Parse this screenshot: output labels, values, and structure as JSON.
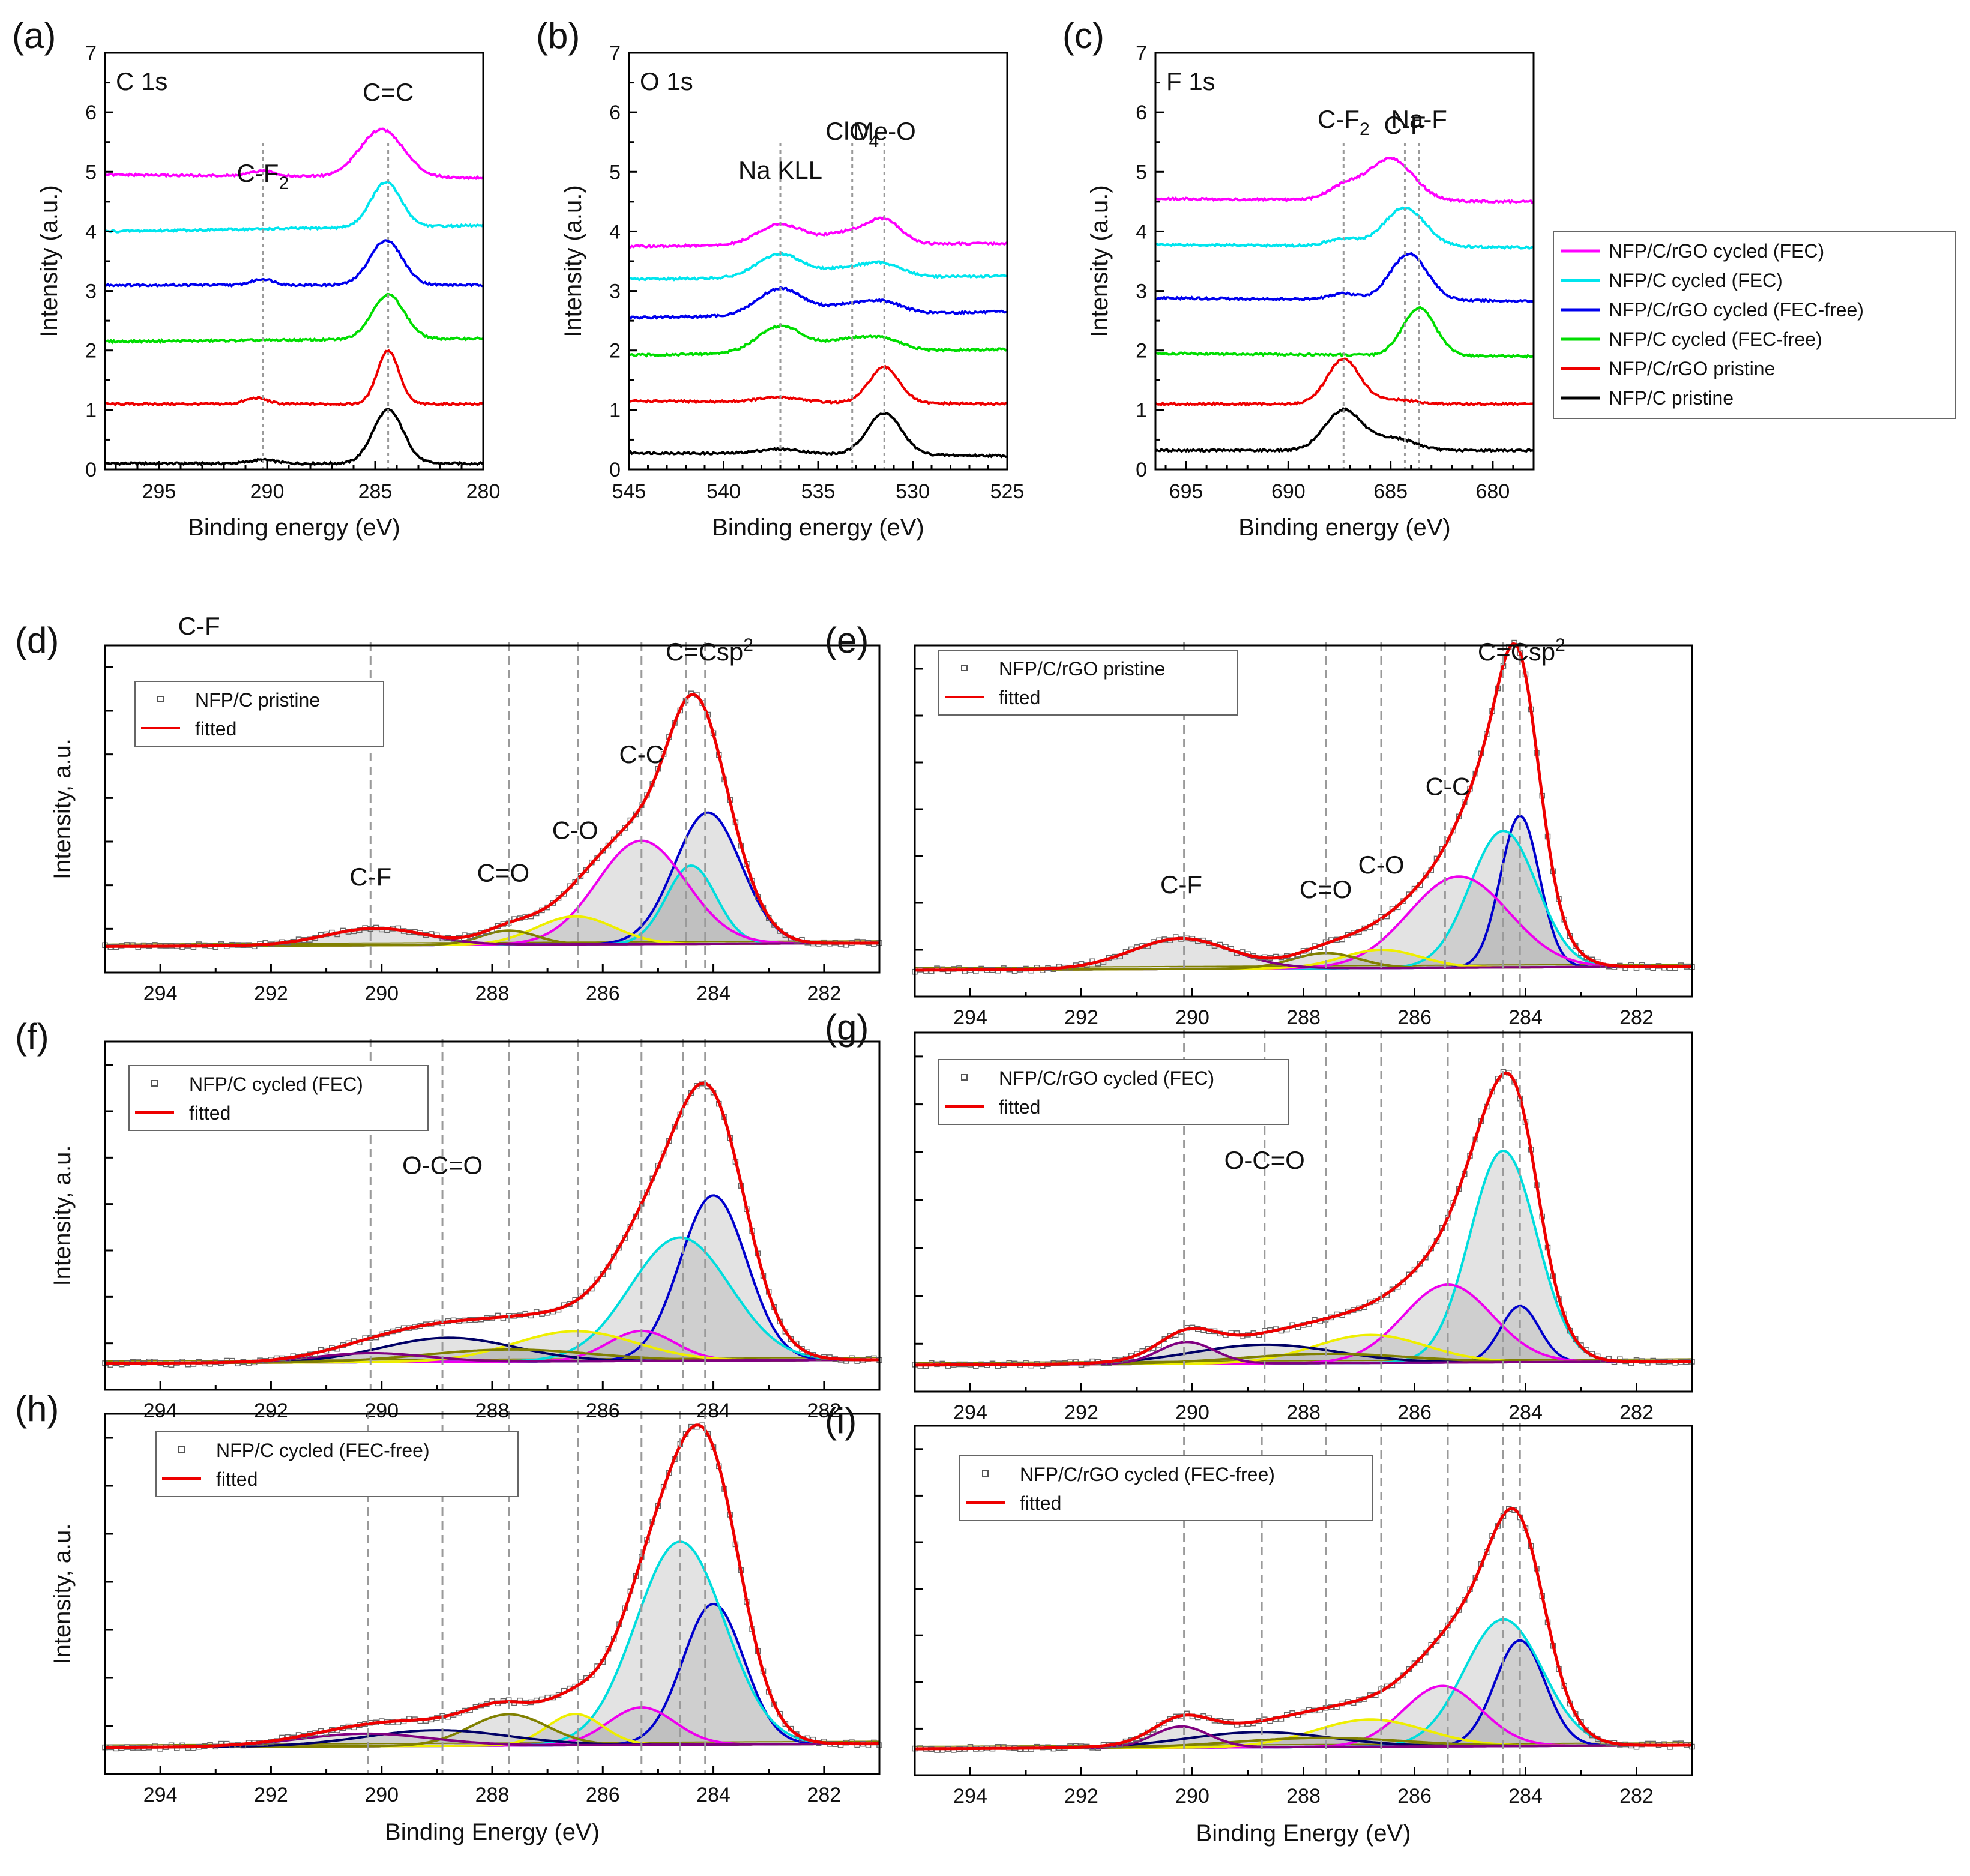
{
  "top_legend": {
    "entries": [
      {
        "label": "NFP/C/rGO cycled (FEC)",
        "color": "#ff00ff"
      },
      {
        "label": "NFP/C cycled (FEC)",
        "color": "#00e5ee"
      },
      {
        "label": "NFP/C/rGO cycled (FEC-free)",
        "color": "#0000ee"
      },
      {
        "label": "NFP/C cycled (FEC-free)",
        "color": "#00dd00"
      },
      {
        "label": "NFP/C/rGO pristine",
        "color": "#ee0000"
      },
      {
        "label": "NFP/C pristine",
        "color": "#000000"
      }
    ]
  },
  "fit_colors": {
    "sp2": "#0000cc",
    "cc_double": "#00dddd",
    "cc": "#ee00ee",
    "co": "#eeee00",
    "c_double_o": "#808000",
    "ocdo": "#000066",
    "cf": "#800080",
    "base": "#555555",
    "envelope": "#ee0000",
    "data": "#666666"
  },
  "chart_data": [
    {
      "id": "a",
      "type": "line",
      "panel_label": "(a)",
      "title": "C 1s",
      "xlabel": "Binding energy (eV)",
      "ylabel": "Intensity (a.u.)",
      "xlim": [
        297.5,
        280
      ],
      "ylim": [
        0,
        7
      ],
      "xticks": [
        "295",
        "290",
        "285",
        "280"
      ],
      "yticks": [
        "0",
        "1",
        "2",
        "3",
        "4",
        "5",
        "6",
        "7"
      ],
      "annotations": [
        {
          "text": "C-F",
          "sub": "2",
          "x": 290.2
        },
        {
          "text": "C=C",
          "x": 284.4
        }
      ],
      "series": [
        {
          "name": "NFP/C pristine",
          "color": "#000000",
          "offset": 0.1,
          "baseline": 0.0,
          "peaks": [
            [
              284.4,
              0.9,
              0.7
            ],
            [
              290.2,
              0.06,
              0.6
            ]
          ]
        },
        {
          "name": "NFP/C/rGO pristine",
          "color": "#ee0000",
          "offset": 1.1,
          "baseline": 0.0,
          "peaks": [
            [
              284.4,
              0.9,
              0.5
            ],
            [
              290.5,
              0.1,
              0.5
            ]
          ]
        },
        {
          "name": "NFP/C cycled (FEC-free)",
          "color": "#00dd00",
          "offset": 2.15,
          "baseline": 0.05,
          "peaks": [
            [
              284.4,
              0.75,
              0.75
            ]
          ]
        },
        {
          "name": "NFP/C/rGO cycled (FEC-free)",
          "color": "#0000ee",
          "offset": 3.1,
          "baseline": 0.0,
          "peaks": [
            [
              284.5,
              0.75,
              0.75
            ],
            [
              290.2,
              0.1,
              0.5
            ]
          ]
        },
        {
          "name": "NFP/C cycled (FEC)",
          "color": "#00e5ee",
          "offset": 4.0,
          "baseline": 0.1,
          "peaks": [
            [
              284.5,
              0.75,
              0.7
            ]
          ]
        },
        {
          "name": "NFP/C/rGO cycled (FEC)",
          "color": "#ff00ff",
          "offset": 4.95,
          "baseline": -0.05,
          "peaks": [
            [
              284.7,
              0.8,
              1.0
            ],
            [
              290.2,
              0.08,
              0.6
            ]
          ]
        }
      ]
    },
    {
      "id": "b",
      "type": "line",
      "panel_label": "(b)",
      "title": "O 1s",
      "xlabel": "Binding energy (eV)",
      "ylabel": "Intensity (a.u.)",
      "xlim": [
        545,
        525
      ],
      "ylim": [
        0,
        7
      ],
      "xticks": [
        "545",
        "540",
        "535",
        "530",
        "525"
      ],
      "yticks": [
        "0",
        "1",
        "2",
        "3",
        "4",
        "5",
        "6",
        "7"
      ],
      "annotations": [
        {
          "text": "Na KLL",
          "x": 537
        },
        {
          "text": "ClO",
          "sub": "4",
          "x": 533.2
        },
        {
          "text": "Me-O",
          "x": 531.5
        }
      ],
      "series": [
        {
          "name": "NFP/C pristine",
          "color": "#000000",
          "offset": 0.28,
          "baseline": -0.05,
          "peaks": [
            [
              531.5,
              0.7,
              0.9
            ],
            [
              537,
              0.08,
              1.2
            ]
          ]
        },
        {
          "name": "NFP/C/rGO pristine",
          "color": "#ee0000",
          "offset": 1.15,
          "baseline": -0.05,
          "peaks": [
            [
              531.5,
              0.6,
              0.8
            ],
            [
              537,
              0.08,
              1.2
            ]
          ]
        },
        {
          "name": "NFP/C cycled (FEC-free)",
          "color": "#00dd00",
          "offset": 1.92,
          "baseline": 0.1,
          "peaks": [
            [
              537,
              0.45,
              1.2
            ],
            [
              533.5,
              0.2,
              1.2
            ],
            [
              531.5,
              0.18,
              1.0
            ]
          ]
        },
        {
          "name": "NFP/C/rGO cycled (FEC-free)",
          "color": "#0000ee",
          "offset": 2.55,
          "baseline": 0.1,
          "peaks": [
            [
              537,
              0.45,
              1.2
            ],
            [
              533.5,
              0.15,
              1.2
            ],
            [
              531.5,
              0.18,
              1.0
            ]
          ]
        },
        {
          "name": "NFP/C cycled (FEC)",
          "color": "#00e5ee",
          "offset": 3.2,
          "baseline": 0.05,
          "peaks": [
            [
              537,
              0.4,
              1.2
            ],
            [
              533.5,
              0.15,
              1.2
            ],
            [
              531.5,
              0.2,
              1.0
            ]
          ]
        },
        {
          "name": "NFP/C/rGO cycled (FEC)",
          "color": "#ff00ff",
          "offset": 3.75,
          "baseline": 0.05,
          "peaks": [
            [
              537,
              0.35,
              1.2
            ],
            [
              533.5,
              0.2,
              1.2
            ],
            [
              531.5,
              0.38,
              0.9
            ]
          ]
        }
      ]
    },
    {
      "id": "c",
      "type": "line",
      "panel_label": "(c)",
      "title": "F 1s",
      "xlabel": "Binding energy (eV)",
      "ylabel": "Intensity (a.u.)",
      "xlim": [
        696.5,
        678
      ],
      "ylim": [
        0,
        7
      ],
      "xticks": [
        "695",
        "690",
        "685",
        "680"
      ],
      "yticks": [
        "0",
        "1",
        "2",
        "3",
        "4",
        "5",
        "6",
        "7"
      ],
      "annotations": [
        {
          "text": "C-F",
          "sub": "2",
          "x": 687.3
        },
        {
          "text": "C-F",
          "x": 684.3
        },
        {
          "text": "Na-F",
          "x": 683.6
        }
      ],
      "series": [
        {
          "name": "NFP/C pristine",
          "color": "#000000",
          "offset": 0.32,
          "baseline": 0.0,
          "peaks": [
            [
              687.3,
              0.68,
              0.9
            ],
            [
              684.8,
              0.2,
              1.0
            ]
          ]
        },
        {
          "name": "NFP/C/rGO pristine",
          "color": "#ee0000",
          "offset": 1.1,
          "baseline": 0.0,
          "peaks": [
            [
              687.3,
              0.75,
              0.8
            ],
            [
              684.8,
              0.07,
              1.0
            ]
          ]
        },
        {
          "name": "NFP/C cycled (FEC-free)",
          "color": "#00dd00",
          "offset": 1.95,
          "baseline": -0.05,
          "peaks": [
            [
              683.6,
              0.8,
              0.8
            ]
          ]
        },
        {
          "name": "NFP/C/rGO cycled (FEC-free)",
          "color": "#0000ee",
          "offset": 2.88,
          "baseline": -0.05,
          "peaks": [
            [
              684.1,
              0.78,
              0.9
            ],
            [
              687.3,
              0.1,
              0.7
            ]
          ]
        },
        {
          "name": "NFP/C cycled (FEC)",
          "color": "#00e5ee",
          "offset": 3.78,
          "baseline": -0.05,
          "peaks": [
            [
              684.3,
              0.65,
              1.0
            ],
            [
              687.3,
              0.12,
              0.8
            ]
          ]
        },
        {
          "name": "NFP/C/rGO cycled (FEC)",
          "color": "#ff00ff",
          "offset": 4.55,
          "baseline": -0.05,
          "peaks": [
            [
              685,
              0.7,
              1.1
            ],
            [
              687.3,
              0.22,
              0.8
            ]
          ]
        }
      ]
    },
    {
      "id": "d",
      "type": "line",
      "panel_label": "(d)",
      "xlabel": "",
      "ylabel": "Intensity, a.u.",
      "xlim": [
        295,
        281
      ],
      "xticks": [
        "294",
        "292",
        "290",
        "288",
        "286",
        "284",
        "282"
      ],
      "legend": {
        "data": "NFP/C pristine",
        "fit": "fitted"
      },
      "top_note": "C-F",
      "annotations": [
        {
          "text": "C-F",
          "x": 290.2,
          "peak": "cf"
        },
        {
          "text": "C=O",
          "x": 287.8,
          "peak": "c_double_o"
        },
        {
          "text": "C-O",
          "x": 286.5,
          "peak": "co"
        },
        {
          "text": "C-C",
          "x": 285.3,
          "peak": "cc"
        },
        {
          "text": "C=C",
          "x": 284.4,
          "peak": "cc_double",
          "y_pos": "top"
        },
        {
          "text": "sp",
          "sup": "2",
          "x": 284.1,
          "peak": "sp2",
          "y_pos": "top"
        }
      ],
      "components": [
        {
          "name": "sp2",
          "center": 284.1,
          "height": 0.47,
          "width": 0.6
        },
        {
          "name": "cc_double",
          "center": 284.4,
          "height": 0.28,
          "width": 0.45
        },
        {
          "name": "cc",
          "center": 285.3,
          "height": 0.37,
          "width": 0.8
        },
        {
          "name": "co",
          "center": 286.5,
          "height": 0.1,
          "width": 0.7
        },
        {
          "name": "c_double_o",
          "center": 287.7,
          "height": 0.05,
          "width": 0.5
        },
        {
          "name": "cf",
          "center": 290.1,
          "height": 0.06,
          "width": 0.9
        }
      ]
    },
    {
      "id": "e",
      "type": "line",
      "panel_label": "(e)",
      "xlabel": "",
      "ylabel": "",
      "xlim": [
        295,
        281
      ],
      "xticks": [
        "294",
        "292",
        "290",
        "288",
        "286",
        "284",
        "282"
      ],
      "legend": {
        "data": "NFP/C/rGO pristine",
        "fit": "fitted"
      },
      "annotations": [
        {
          "text": "C-F",
          "x": 290.2,
          "peak": "cf"
        },
        {
          "text": "C=O",
          "x": 287.6,
          "peak": "c_double_o"
        },
        {
          "text": "C-O",
          "x": 286.6,
          "peak": "co"
        },
        {
          "text": "C-C",
          "x": 285.4,
          "peak": "cc"
        },
        {
          "text": "C=C",
          "x": 284.4,
          "peak": "cc_double",
          "y_pos": "top"
        },
        {
          "text": "sp",
          "sup": "2",
          "x": 284.1,
          "peak": "sp2",
          "y_pos": "top"
        }
      ],
      "components": [
        {
          "name": "sp2",
          "center": 284.1,
          "height": 0.5,
          "width": 0.35
        },
        {
          "name": "cc_double",
          "center": 284.4,
          "height": 0.45,
          "width": 0.6
        },
        {
          "name": "cc",
          "center": 285.2,
          "height": 0.3,
          "width": 0.9
        },
        {
          "name": "co",
          "center": 286.6,
          "height": 0.06,
          "width": 0.7
        },
        {
          "name": "c_double_o",
          "center": 287.6,
          "height": 0.05,
          "width": 0.6
        },
        {
          "name": "cf",
          "center": 290.2,
          "height": 0.1,
          "width": 0.9
        }
      ]
    },
    {
      "id": "f",
      "type": "line",
      "panel_label": "(f)",
      "xlabel": "",
      "ylabel": "Intensity, a.u.",
      "xlim": [
        295,
        281
      ],
      "xticks": [
        "294",
        "292",
        "290",
        "288",
        "286",
        "284",
        "282"
      ],
      "legend": {
        "data": "NFP/C cycled (FEC)",
        "fit": "fitted"
      },
      "annotations": [
        {
          "text": "O-C=O",
          "x": 288.9,
          "peak": "ocdo"
        }
      ],
      "components": [
        {
          "name": "sp2",
          "center": 284.0,
          "height": 0.55,
          "width": 0.6
        },
        {
          "name": "cc_double",
          "center": 284.6,
          "height": 0.41,
          "width": 0.9
        },
        {
          "name": "cc",
          "center": 285.3,
          "height": 0.1,
          "width": 0.6
        },
        {
          "name": "co",
          "center": 286.5,
          "height": 0.1,
          "width": 1.1
        },
        {
          "name": "ocdo",
          "center": 288.8,
          "height": 0.08,
          "width": 1.2
        },
        {
          "name": "c_double_o",
          "center": 287.7,
          "height": 0.04,
          "width": 1.5
        },
        {
          "name": "cf",
          "center": 290.2,
          "height": 0.03,
          "width": 1.0
        }
      ]
    },
    {
      "id": "g",
      "type": "line",
      "panel_label": "(g)",
      "xlabel": "",
      "ylabel": "",
      "xlim": [
        295,
        281
      ],
      "xticks": [
        "294",
        "292",
        "290",
        "288",
        "286",
        "284",
        "282"
      ],
      "legend": {
        "data": "NFP/C/rGO cycled (FEC)",
        "fit": "fitted"
      },
      "annotations": [
        {
          "text": "O-C=O",
          "x": 288.7,
          "peak": "ocdo"
        }
      ],
      "components": [
        {
          "name": "sp2",
          "center": 284.1,
          "height": 0.18,
          "width": 0.35
        },
        {
          "name": "cc_double",
          "center": 284.4,
          "height": 0.68,
          "width": 0.6
        },
        {
          "name": "cc",
          "center": 285.4,
          "height": 0.25,
          "width": 0.8
        },
        {
          "name": "co",
          "center": 286.8,
          "height": 0.09,
          "width": 1.0
        },
        {
          "name": "ocdo",
          "center": 288.7,
          "height": 0.06,
          "width": 1.3
        },
        {
          "name": "c_double_o",
          "center": 287.6,
          "height": 0.03,
          "width": 1.5
        },
        {
          "name": "cf",
          "center": 290.1,
          "height": 0.07,
          "width": 0.5
        }
      ]
    },
    {
      "id": "h",
      "type": "line",
      "panel_label": "(h)",
      "xlabel": "Binding Energy (eV)",
      "ylabel": "Intensity, a.u.",
      "xlim": [
        295,
        281
      ],
      "xticks": [
        "294",
        "292",
        "290",
        "288",
        "286",
        "284",
        "282"
      ],
      "legend": {
        "data": "NFP/C cycled (FEC-free)",
        "fit": "fitted"
      },
      "annotations": [],
      "components": [
        {
          "name": "sp2",
          "center": 284.0,
          "height": 0.45,
          "width": 0.55
        },
        {
          "name": "cc_double",
          "center": 284.6,
          "height": 0.65,
          "width": 0.8
        },
        {
          "name": "cc",
          "center": 285.3,
          "height": 0.12,
          "width": 0.6
        },
        {
          "name": "co",
          "center": 286.5,
          "height": 0.1,
          "width": 0.5
        },
        {
          "name": "c_double_o",
          "center": 287.7,
          "height": 0.1,
          "width": 0.7
        },
        {
          "name": "ocdo",
          "center": 289.0,
          "height": 0.05,
          "width": 1.3
        },
        {
          "name": "cf",
          "center": 290.3,
          "height": 0.04,
          "width": 1.2
        }
      ]
    },
    {
      "id": "i",
      "type": "line",
      "panel_label": "(i)",
      "xlabel": "Binding Energy (eV)",
      "ylabel": "",
      "xlim": [
        295,
        281
      ],
      "xticks": [
        "294",
        "292",
        "290",
        "288",
        "286",
        "284",
        "282"
      ],
      "legend": {
        "data": "NFP/C/rGO cycled (FEC-free)",
        "fit": "fitted"
      },
      "annotations": [],
      "components": [
        {
          "name": "sp2",
          "center": 284.1,
          "height": 0.35,
          "width": 0.45
        },
        {
          "name": "cc_double",
          "center": 284.4,
          "height": 0.42,
          "width": 0.7
        },
        {
          "name": "cc",
          "center": 285.5,
          "height": 0.2,
          "width": 0.7
        },
        {
          "name": "co",
          "center": 286.8,
          "height": 0.09,
          "width": 1.0
        },
        {
          "name": "ocdo",
          "center": 288.8,
          "height": 0.05,
          "width": 1.3
        },
        {
          "name": "c_double_o",
          "center": 287.7,
          "height": 0.03,
          "width": 1.5
        },
        {
          "name": "cf",
          "center": 290.2,
          "height": 0.07,
          "width": 0.5
        }
      ]
    }
  ]
}
